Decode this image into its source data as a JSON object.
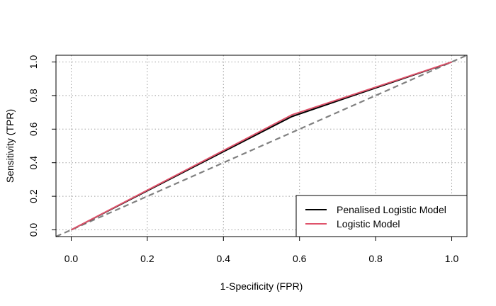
{
  "chart_data": {
    "type": "line",
    "title": "",
    "xlabel": "1-Specificity (FPR)",
    "ylabel": "Sensitivity (TPR)",
    "xlim": [
      -0.04,
      1.04
    ],
    "ylim": [
      -0.04,
      1.04
    ],
    "x_ticks": [
      "0.0",
      "0.2",
      "0.4",
      "0.6",
      "0.8",
      "1.0"
    ],
    "y_ticks": [
      "0.0",
      "0.2",
      "0.4",
      "0.6",
      "0.8",
      "1.0"
    ],
    "grid": true,
    "grid_style": "dotted",
    "legend_position": "bottom-right",
    "reference_line": {
      "x": [
        -0.04,
        1.04
      ],
      "y": [
        -0.04,
        1.04
      ],
      "color": "#808080",
      "style": "dashed"
    },
    "series": [
      {
        "name": "Penalised Logistic Model",
        "color": "#000000",
        "x": [
          0.0,
          0.58,
          1.0
        ],
        "y": [
          0.0,
          0.675,
          1.0
        ]
      },
      {
        "name": "Logistic Model",
        "color": "#DF536B",
        "x": [
          0.0,
          0.58,
          1.0
        ],
        "y": [
          0.0,
          0.685,
          1.0
        ]
      }
    ]
  }
}
